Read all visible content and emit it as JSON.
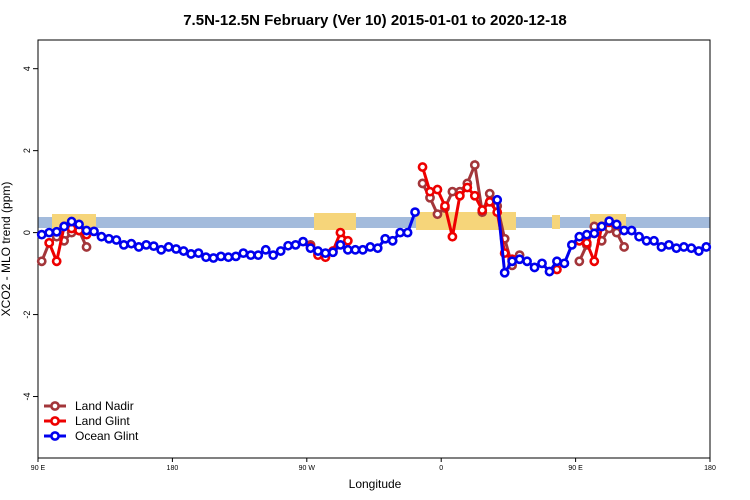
{
  "chart_data": {
    "type": "line",
    "title": "7.5N-12.5N February (Ver 10)   2015-01-01 to 2020-12-18",
    "x_label": "Longitude",
    "y_label": "XCO2 - MLO trend (ppm)",
    "x": [
      92.5,
      97.5,
      102.5,
      107.5,
      112.5,
      117.5,
      122.5,
      127.5,
      132.5,
      137.5,
      142.5,
      147.5,
      152.5,
      157.5,
      162.5,
      167.5,
      172.5,
      177.5,
      182.5,
      187.5,
      192.5,
      197.5,
      202.5,
      207.5,
      212.5,
      217.5,
      222.5,
      227.5,
      232.5,
      237.5,
      242.5,
      247.5,
      252.5,
      257.5,
      262.5,
      267.5,
      272.5,
      277.5,
      282.5,
      287.5,
      292.5,
      297.5,
      302.5,
      307.5,
      312.5,
      317.5,
      322.5,
      327.5,
      332.5,
      337.5,
      342.5,
      347.5,
      352.5,
      357.5,
      362.5,
      367.5,
      372.5,
      377.5,
      382.5,
      387.5,
      392.5,
      397.5,
      402.5,
      407.5,
      412.5,
      417.5,
      422.5,
      427.5,
      432.5,
      437.5,
      442.5,
      447.5,
      452.5,
      457.5,
      462.5,
      467.5,
      472.5,
      477.5,
      482.5,
      487.5,
      492.5,
      497.5,
      502.5,
      507.5,
      512.5,
      517.5,
      522.5,
      527.5,
      532.5,
      537.5
    ],
    "series": [
      {
        "name": "Land Nadir",
        "color": "#a3363a",
        "values": [
          -0.7,
          -0.25,
          -0.1,
          -0.2,
          0,
          0.05,
          -0.35,
          null,
          null,
          null,
          null,
          null,
          null,
          null,
          null,
          null,
          null,
          null,
          null,
          null,
          null,
          null,
          null,
          null,
          null,
          null,
          null,
          null,
          null,
          null,
          null,
          null,
          null,
          null,
          null,
          null,
          -0.3,
          -0.5,
          null,
          null,
          null,
          null,
          null,
          null,
          null,
          null,
          null,
          null,
          null,
          null,
          null,
          1.2,
          0.85,
          0.45,
          0.6,
          1.0,
          1.0,
          1.2,
          1.65,
          0.5,
          0.95,
          0.65,
          -0.15,
          -0.8,
          -0.55,
          null,
          null,
          null,
          null,
          null,
          null,
          null,
          -0.7,
          -0.3,
          0.15,
          -0.2,
          0.1,
          0,
          -0.35,
          null,
          null,
          null,
          null,
          null,
          null,
          null,
          null,
          null,
          null,
          null
        ]
      },
      {
        "name": "Land Glint",
        "color": "#ee0000",
        "values": [
          null,
          -0.25,
          -0.7,
          0.15,
          0.1,
          0.05,
          -0.05,
          null,
          null,
          null,
          null,
          null,
          null,
          null,
          null,
          null,
          null,
          null,
          null,
          null,
          null,
          null,
          null,
          null,
          null,
          null,
          null,
          null,
          null,
          null,
          null,
          null,
          null,
          null,
          null,
          null,
          -0.35,
          -0.55,
          -0.6,
          -0.45,
          0,
          -0.2,
          null,
          null,
          null,
          null,
          null,
          null,
          null,
          null,
          null,
          1.6,
          1.0,
          1.05,
          0.65,
          -0.1,
          0.9,
          1.1,
          0.9,
          0.55,
          0.75,
          0.5,
          -0.5,
          -0.65,
          null,
          null,
          null,
          null,
          null,
          -0.9,
          null,
          null,
          -0.2,
          -0.25,
          -0.7,
          0.15,
          0.25,
          null,
          null,
          null,
          null,
          null,
          null,
          null,
          null,
          null,
          null,
          null,
          null,
          null
        ]
      },
      {
        "name": "Ocean Glint",
        "color": "#0000ee",
        "values": [
          -0.05,
          0,
          0.02,
          0.15,
          0.27,
          0.2,
          0.05,
          0.03,
          -0.1,
          -0.15,
          -0.18,
          -0.3,
          -0.27,
          -0.35,
          -0.3,
          -0.33,
          -0.42,
          -0.35,
          -0.4,
          -0.45,
          -0.52,
          -0.5,
          -0.6,
          -0.62,
          -0.58,
          -0.6,
          -0.58,
          -0.5,
          -0.55,
          -0.55,
          -0.42,
          -0.55,
          -0.45,
          -0.32,
          -0.3,
          -0.22,
          -0.38,
          -0.45,
          -0.5,
          -0.48,
          -0.3,
          -0.42,
          -0.42,
          -0.42,
          -0.35,
          -0.38,
          -0.15,
          -0.2,
          0,
          0,
          0.5,
          null,
          null,
          null,
          null,
          null,
          null,
          null,
          null,
          null,
          null,
          0.8,
          -0.98,
          -0.7,
          -0.65,
          -0.7,
          -0.85,
          -0.75,
          -0.95,
          -0.7,
          -0.75,
          -0.3,
          -0.1,
          -0.05,
          -0.02,
          0.15,
          0.28,
          0.2,
          0.05,
          0.05,
          -0.1,
          -0.2,
          -0.2,
          -0.35,
          -0.3,
          -0.38,
          -0.35,
          -0.38,
          -0.45,
          -0.35
        ]
      }
    ],
    "xlim": [
      90,
      540
    ],
    "xticks": [
      {
        "value": 90,
        "label": "90 E"
      },
      {
        "value": 180,
        "label": "180"
      },
      {
        "value": 270,
        "label": "90 W"
      },
      {
        "value": 360,
        "label": "0"
      },
      {
        "value": 450,
        "label": "90 E"
      },
      {
        "value": 540,
        "label": "180"
      }
    ],
    "ylim": [
      -5.5,
      4.7
    ],
    "yticks": [
      -4,
      -2,
      0,
      2,
      4
    ],
    "legend": "bottom-left"
  }
}
